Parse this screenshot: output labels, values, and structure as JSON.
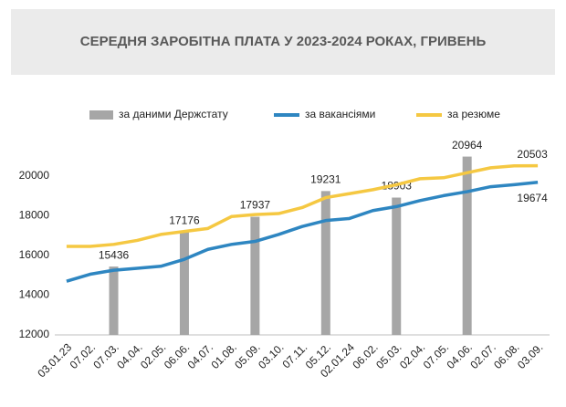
{
  "chart_data": {
    "type": "combo",
    "title": "СЕРЕДНЯ ЗАРОБІТНА ПЛАТА У 2023-2024 РОКАХ, ГРИВЕНЬ",
    "categories": [
      "03.01.23",
      "07.02.",
      "07.03.",
      "04.04.",
      "02.05.",
      "06.06.",
      "04.07.",
      "01.08.",
      "05.09.",
      "03.10.",
      "07.11.",
      "05.12.",
      "02.01.24",
      "06.02.",
      "05.03.",
      "02.04.",
      "07.05.",
      "04.06.",
      "02.07.",
      "06.08.",
      "03.09."
    ],
    "series": [
      {
        "name": "за даними Держстату",
        "type": "bar",
        "color": "#a6a6a6",
        "values": [
          null,
          null,
          15436,
          null,
          null,
          17176,
          null,
          null,
          17937,
          null,
          null,
          19231,
          null,
          null,
          18903,
          null,
          null,
          20964,
          null,
          null,
          null
        ]
      },
      {
        "name": "за вакансіями",
        "type": "line",
        "color": "#2e86c1",
        "values": [
          14700,
          15050,
          15250,
          15350,
          15450,
          15800,
          16300,
          16550,
          16700,
          17050,
          17450,
          17750,
          17850,
          18250,
          18450,
          18750,
          19000,
          19200,
          19450,
          19550,
          19674
        ]
      },
      {
        "name": "за резюме",
        "type": "line",
        "color": "#f5c842",
        "values": [
          16450,
          16450,
          16550,
          16750,
          17050,
          17200,
          17350,
          17950,
          18050,
          18100,
          18400,
          18900,
          19100,
          19300,
          19550,
          19850,
          19900,
          20150,
          20400,
          20500,
          20503
        ]
      }
    ],
    "ylim": [
      12000,
      22000
    ],
    "yticks": [
      12000,
      14000,
      16000,
      18000,
      20000
    ],
    "grid": false
  }
}
